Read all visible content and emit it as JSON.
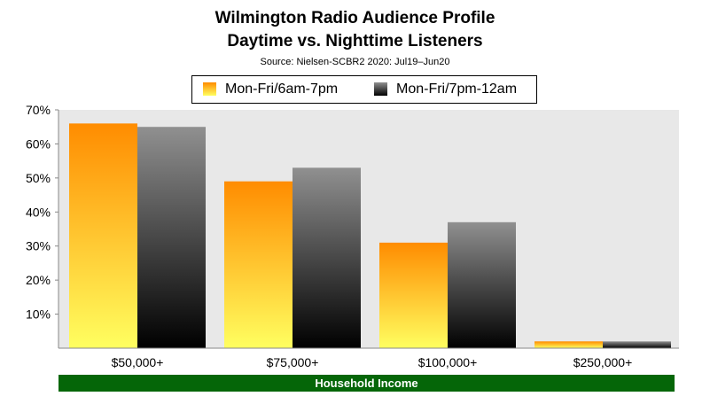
{
  "chart_data": {
    "type": "bar",
    "title": "Wilmington Radio Audience Profile",
    "subtitle": "Daytime vs. Nighttime Listeners",
    "source": "Source: Nielsen-SCBR2 2020: Jul19–Jun20",
    "xlabel": "Household Income",
    "ylabel": "",
    "categories": [
      "$50,000+",
      "$75,000+",
      "$100,000+",
      "$250,000+"
    ],
    "series": [
      {
        "name": "Mon-Fri/6am-7pm",
        "values": [
          66,
          49,
          31,
          2
        ]
      },
      {
        "name": "Mon-Fri/7pm-12am",
        "values": [
          65,
          53,
          37,
          2
        ]
      }
    ],
    "ylim": [
      0,
      70
    ],
    "yticks": [
      10,
      20,
      30,
      40,
      50,
      60,
      70
    ],
    "ytick_labels": [
      "10%",
      "20%",
      "30%",
      "40%",
      "50%",
      "60%",
      "70%"
    ],
    "grid": false,
    "legend_position": "top-center",
    "colors": {
      "day_top": "#ff8c00",
      "day_bottom": "#ffff60",
      "night_top": "#909090",
      "night_bottom": "#000000",
      "plot_bg": "#e8e8e8",
      "xlabel_bg": "#056608"
    }
  }
}
